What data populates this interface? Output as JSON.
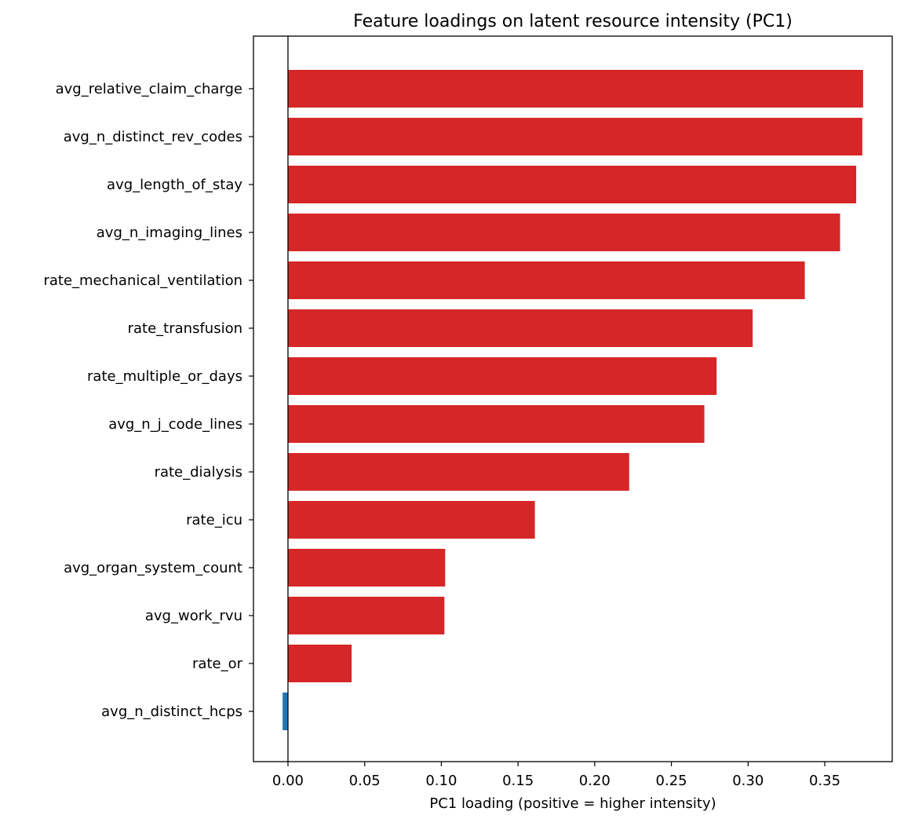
{
  "chart_data": {
    "type": "bar",
    "orientation": "horizontal",
    "title": "Feature loadings on latent resource intensity (PC1)",
    "xlabel": "PC1 loading (positive = higher intensity)",
    "ylabel": "",
    "xlim": [
      -0.0225,
      0.394
    ],
    "xticks": [
      0.0,
      0.05,
      0.1,
      0.15,
      0.2,
      0.25,
      0.3,
      0.35
    ],
    "xtick_labels": [
      "0.00",
      "0.05",
      "0.10",
      "0.15",
      "0.20",
      "0.25",
      "0.30",
      "0.35"
    ],
    "categories": [
      "avg_relative_claim_charge",
      "avg_n_distinct_rev_codes",
      "avg_length_of_stay",
      "avg_n_imaging_lines",
      "rate_mechanical_ventilation",
      "rate_transfusion",
      "rate_multiple_or_days",
      "avg_n_j_code_lines",
      "rate_dialysis",
      "rate_icu",
      "avg_organ_system_count",
      "avg_work_rvu",
      "rate_or",
      "avg_n_distinct_hcps"
    ],
    "values": [
      0.375,
      0.3745,
      0.3705,
      0.36,
      0.337,
      0.303,
      0.2795,
      0.2715,
      0.2225,
      0.161,
      0.1025,
      0.102,
      0.0415,
      -0.0035
    ],
    "colors": {
      "positive": "#d62728",
      "negative": "#1f77b4"
    },
    "zero_line": true,
    "grid": false,
    "legend": "none"
  }
}
